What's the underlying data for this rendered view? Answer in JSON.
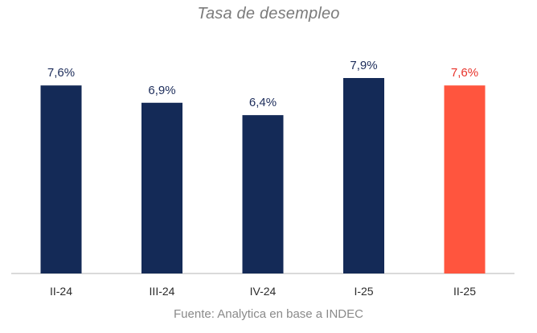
{
  "chart_data": {
    "type": "bar",
    "title": "Tasa de desempleo",
    "categories": [
      "II-24",
      "III-24",
      "IV-24",
      "I-25",
      "II-25"
    ],
    "values": [
      7.6,
      6.9,
      6.4,
      7.9,
      7.6
    ],
    "value_labels": [
      "7,6%",
      "6,9%",
      "6,4%",
      "7,9%",
      "7,6%"
    ],
    "bar_colors": [
      "#142a57",
      "#142a57",
      "#142a57",
      "#142a57",
      "#ff553e"
    ],
    "label_colors": [
      "#1c2c5a",
      "#1c2c5a",
      "#1c2c5a",
      "#1c2c5a",
      "#e8322a"
    ],
    "ylim": [
      0,
      7.9
    ],
    "grid": false,
    "legend": "none",
    "xlabel": "",
    "ylabel": ""
  },
  "source": "Fuente: Analytica en base a INDEC"
}
